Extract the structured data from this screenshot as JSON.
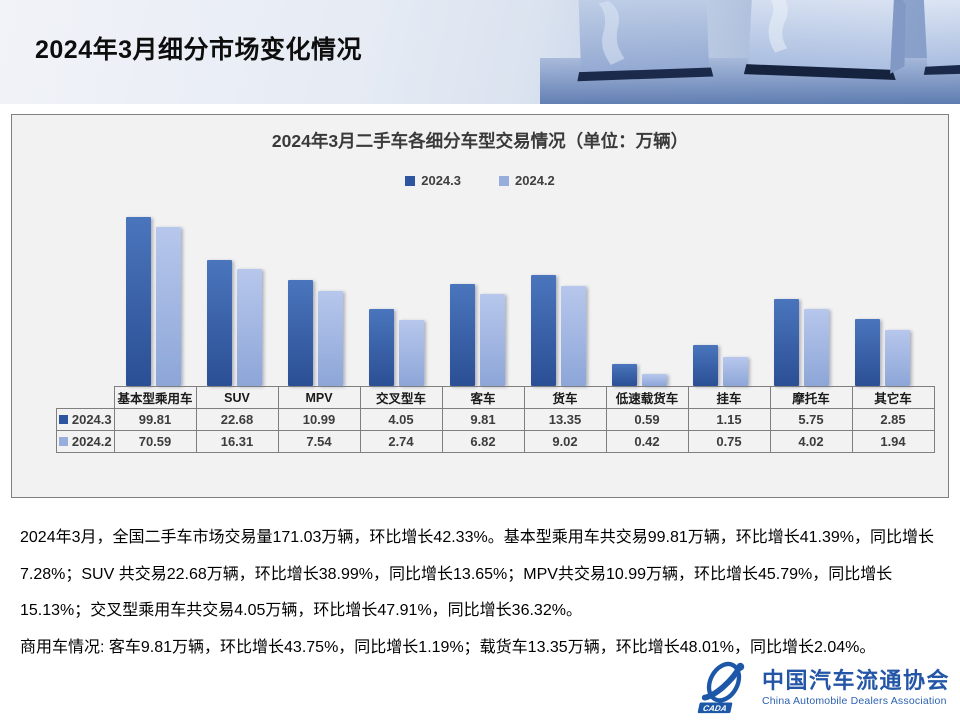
{
  "header": {
    "title": "2024年3月细分市场变化情况"
  },
  "chart_data": {
    "type": "bar",
    "title": "2024年3月二手车各细分车型交易情况（单位：万辆）",
    "unit": "万辆",
    "scale": "log10",
    "grid": false,
    "legend_position": "top-center",
    "categories": [
      "基本型乘用车",
      "SUV",
      "MPV",
      "交叉型车",
      "客车",
      "货车",
      "低速载货车",
      "挂车",
      "摩托车",
      "其它车"
    ],
    "series": [
      {
        "name": "2024.3",
        "color": "#2e55a0",
        "values": [
          99.81,
          22.68,
          10.99,
          4.05,
          9.81,
          13.35,
          0.59,
          1.15,
          5.75,
          2.85
        ]
      },
      {
        "name": "2024.2",
        "color": "#97aedd",
        "values": [
          70.59,
          16.31,
          7.54,
          2.74,
          6.82,
          9.02,
          0.42,
          0.75,
          4.02,
          1.94
        ]
      }
    ]
  },
  "body": {
    "paragraphs": [
      "2024年3月，全国二手车市场交易量171.03万辆，环比增长42.33%。基本型乘用车共交易99.81万辆，环比增长41.39%，同比增长7.28%；SUV 共交易22.68万辆，环比增长38.99%，同比增长13.65%；MPV共交易10.99万辆，环比增长45.79%，同比增长15.13%；交叉型乘用车共交易4.05万辆，环比增长47.91%，同比增长36.32%。",
      "商用车情况: 客车9.81万辆，环比增长43.75%，同比增长1.19%；载货车13.35万辆，环比增长48.01%，同比增长2.04%。"
    ]
  },
  "footer": {
    "org_cn": "中国汽车流通协会",
    "org_en": "China Automobile Dealers Association",
    "emblem": "CADA",
    "brand_color": "#2456a8"
  }
}
